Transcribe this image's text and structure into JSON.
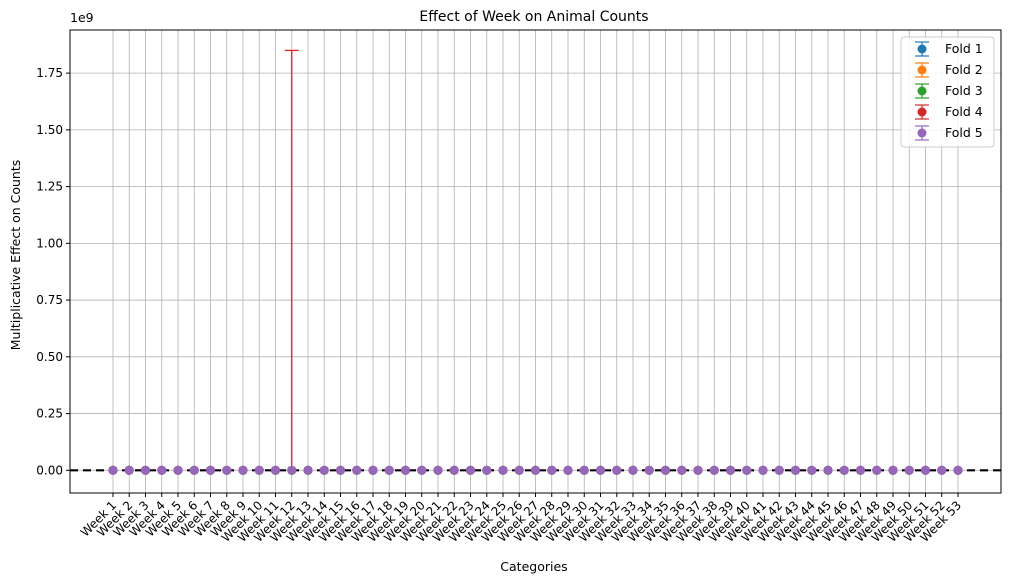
{
  "chart_data": {
    "type": "scatter",
    "title": "Effect of Week on Animal Counts",
    "xlabel": "Categories",
    "ylabel": "Multiplicative Effect on Counts",
    "y_offset_label": "1e9",
    "ylim": [
      -0.1,
      1.94
    ],
    "yticks": [
      0.0,
      0.25,
      0.5,
      0.75,
      1.0,
      1.25,
      1.5,
      1.75
    ],
    "ytick_labels": [
      "0.00",
      "0.25",
      "0.50",
      "0.75",
      "1.00",
      "1.25",
      "1.50",
      "1.75"
    ],
    "grid": true,
    "legend_position": "top-right",
    "reference_line": {
      "y": 0,
      "style": "dashed",
      "color": "#000000"
    },
    "categories": [
      "Week 1",
      "Week 2",
      "Week 3",
      "Week 4",
      "Week 5",
      "Week 6",
      "Week 7",
      "Week 8",
      "Week 9",
      "Week 10",
      "Week 11",
      "Week 12",
      "Week 13",
      "Week 14",
      "Week 15",
      "Week 16",
      "Week 17",
      "Week 18",
      "Week 19",
      "Week 20",
      "Week 21",
      "Week 22",
      "Week 23",
      "Week 24",
      "Week 25",
      "Week 26",
      "Week 27",
      "Week 28",
      "Week 29",
      "Week 30",
      "Week 31",
      "Week 32",
      "Week 33",
      "Week 34",
      "Week 35",
      "Week 36",
      "Week 37",
      "Week 38",
      "Week 39",
      "Week 40",
      "Week 41",
      "Week 42",
      "Week 43",
      "Week 44",
      "Week 45",
      "Week 46",
      "Week 47",
      "Week 48",
      "Week 49",
      "Week 50",
      "Week 51",
      "Week 52",
      "Week 53"
    ],
    "series": [
      {
        "name": "Fold 1",
        "color": "#1f77b4",
        "values_note": "all ~0",
        "errors": []
      },
      {
        "name": "Fold 2",
        "color": "#ff7f0e",
        "errors": []
      },
      {
        "name": "Fold 3",
        "color": "#2ca02c",
        "errors": []
      },
      {
        "name": "Fold 4",
        "color": "#d62728",
        "errors": [
          {
            "category": "Week 12",
            "upper": 1.85
          }
        ]
      },
      {
        "name": "Fold 5",
        "color": "#9467bd",
        "errors": []
      }
    ]
  }
}
